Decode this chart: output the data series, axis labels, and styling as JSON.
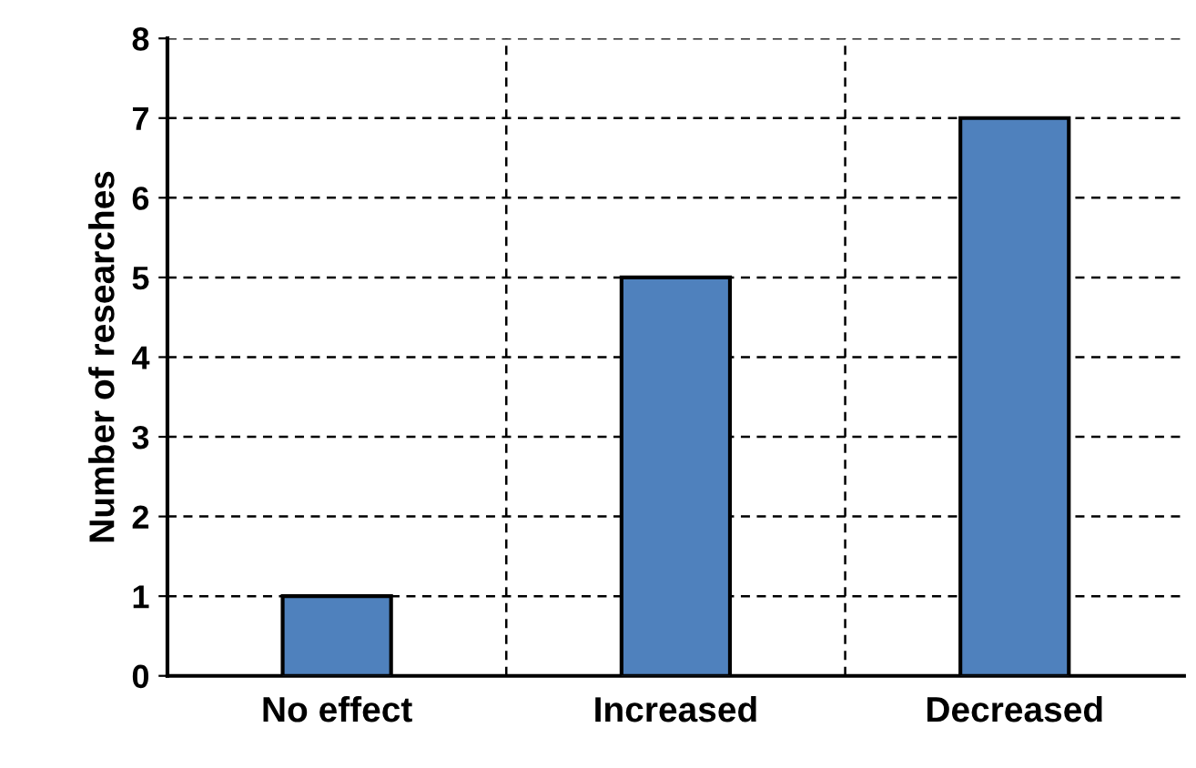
{
  "chart_data": {
    "type": "bar",
    "ylabel": "Number of researches",
    "categories": [
      "No effect",
      "Increased",
      "Decreased"
    ],
    "values": [
      1,
      5,
      7
    ],
    "color": "#4f81bd",
    "ylim": [
      0,
      8
    ],
    "yticks": [
      0,
      1,
      2,
      3,
      4,
      5,
      6,
      7,
      8
    ],
    "grid": true
  }
}
